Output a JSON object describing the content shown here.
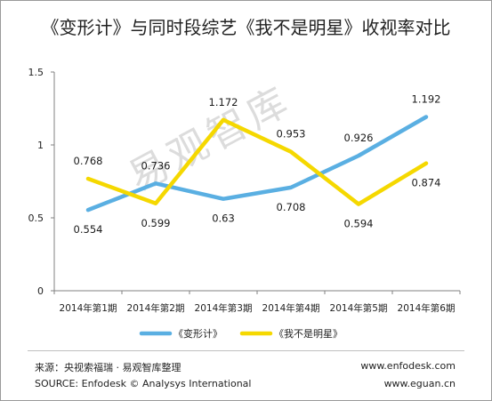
{
  "title": "《变形计》与同时段综艺《我不是明星》收视率对比",
  "watermark": "易观智库",
  "footer": {
    "source_cn": "来源：央视索福瑞 · 易观智库整理",
    "source_en": "SOURCE: Enfodesk © Analysys International",
    "url1": "www.enfodesk.com",
    "url2": "www.eguan.cn"
  },
  "chart_data": {
    "type": "line",
    "title": "《变形计》与同时段综艺《我不是明星》收视率对比",
    "categories": [
      "2014年第1期",
      "2014年第2期",
      "2014年第3期",
      "2014年第4期",
      "2014年第5期",
      "2014年第6期"
    ],
    "series": [
      {
        "name": "《变形计》",
        "color": "#5aafe2",
        "values": [
          0.554,
          0.736,
          0.63,
          0.708,
          0.926,
          1.192
        ],
        "labels": [
          "0.554",
          "0.736",
          "0.63",
          "0.708",
          "0.926",
          "1.192"
        ]
      },
      {
        "name": "《我不是明星》",
        "color": "#f5d800",
        "values": [
          0.768,
          0.599,
          1.172,
          0.953,
          0.594,
          0.874
        ],
        "labels": [
          "0.768",
          "0.599",
          "1.172",
          "0.953",
          "0.594",
          "0.874"
        ]
      }
    ],
    "ylim": [
      0,
      1.5
    ],
    "yticks": [
      0,
      0.5,
      1,
      1.5
    ],
    "ytick_labels": [
      "0",
      "0.5",
      "1",
      "1.5"
    ],
    "grid": false,
    "legend": "bottom"
  }
}
